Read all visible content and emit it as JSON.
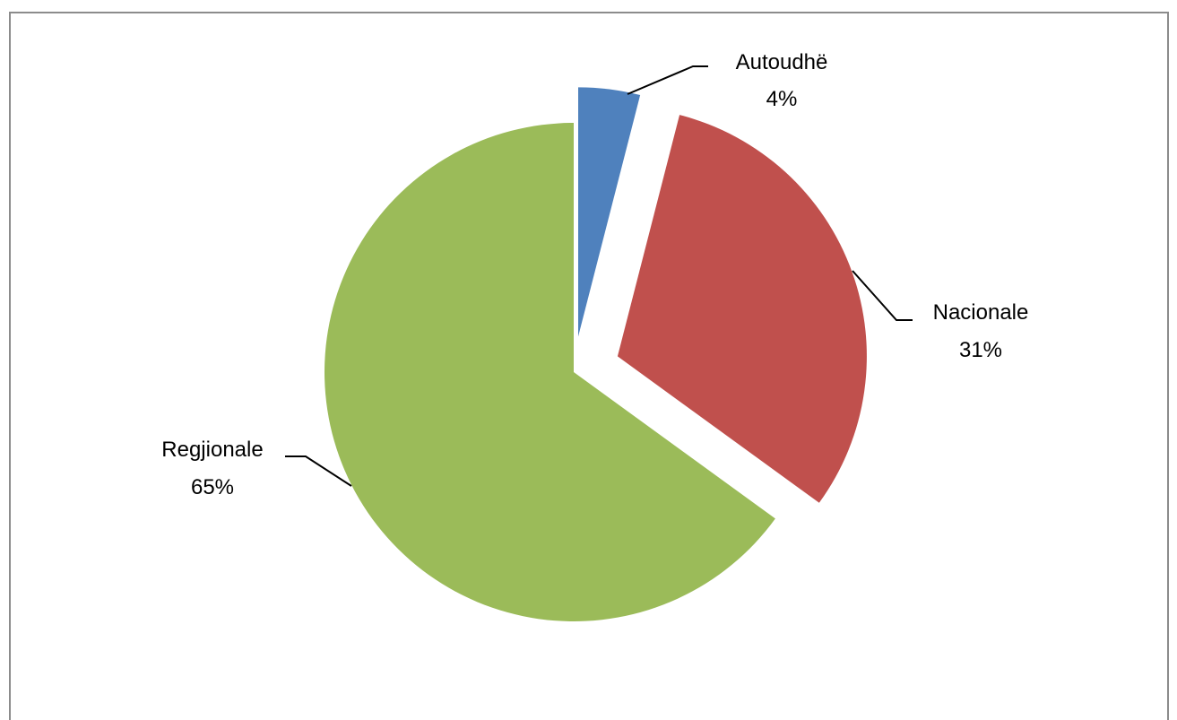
{
  "chart_data": {
    "type": "pie",
    "title": "",
    "slices": [
      {
        "label": "Autoudhë",
        "value": 4,
        "value_label": "4%",
        "color": "#4F81BD",
        "exploded": true
      },
      {
        "label": "Nacionale",
        "value": 31,
        "value_label": "31%",
        "color": "#C0504D",
        "exploded": true
      },
      {
        "label": "Regjionale",
        "value": 65,
        "value_label": "65%",
        "color": "#9BBB59",
        "exploded": false
      }
    ],
    "start_angle": "12 o'clock",
    "direction": "clockwise",
    "legend": "none",
    "data_labels": "outside with leader lines"
  }
}
